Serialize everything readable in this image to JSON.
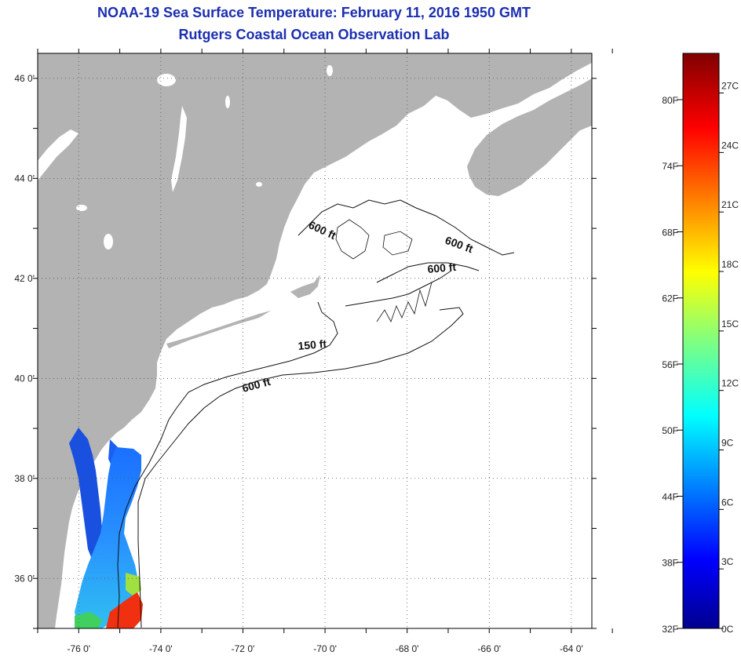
{
  "title": {
    "line1": "NOAA-19 Sea Surface Temperature:  February 11, 2016 1950 GMT",
    "line2": "Rutgers Coastal Ocean Observation Lab"
  },
  "map": {
    "lat_range": [
      35,
      46.5
    ],
    "lon_range": [
      -77,
      -63.5
    ],
    "lat_ticks": [
      {
        "value": 46,
        "label": "46 0'"
      },
      {
        "value": 44,
        "label": "44 0'"
      },
      {
        "value": 42,
        "label": "42 0'"
      },
      {
        "value": 40,
        "label": "40 0'"
      },
      {
        "value": 38,
        "label": "38 0'"
      },
      {
        "value": 36,
        "label": "36 0'"
      }
    ],
    "lon_ticks": [
      {
        "value": -76,
        "label": "-76 0'"
      },
      {
        "value": -74,
        "label": "-74 0'"
      },
      {
        "value": -72,
        "label": "-72 0'"
      },
      {
        "value": -70,
        "label": "-70 0'"
      },
      {
        "value": -68,
        "label": "-68 0'"
      },
      {
        "value": -66,
        "label": "-66 0'"
      },
      {
        "value": -64,
        "label": "-64 0'"
      }
    ],
    "grid": "dotted",
    "land_color": "#b3b3b3",
    "ocean_color": "#ffffff",
    "contour_labels": [
      {
        "text": "600 ft"
      },
      {
        "text": "600 ft"
      },
      {
        "text": "600 ft"
      },
      {
        "text": "150 ft"
      },
      {
        "text": "600 ft"
      }
    ]
  },
  "colorbar": {
    "fahrenheit": [
      "80F",
      "74F",
      "68F",
      "62F",
      "56F",
      "50F",
      "44F",
      "38F",
      "32F"
    ],
    "celsius": [
      "27C",
      "24C",
      "21C",
      "18C",
      "15C",
      "12C",
      "9C",
      "6C",
      "3C",
      "0C"
    ],
    "colors": {
      "min": "#00008f",
      "low": "#1060ff",
      "mid": "#00e0e0",
      "warm": "#f0f000",
      "hot": "#ff2000",
      "max": "#800000"
    }
  }
}
